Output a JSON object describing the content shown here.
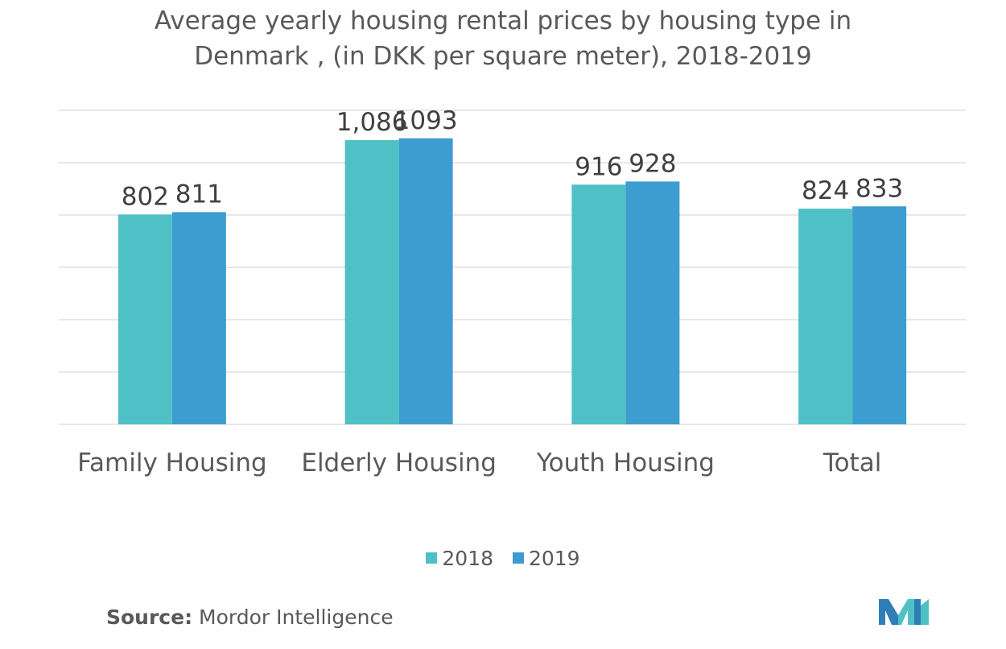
{
  "title_line1": "Average yearly housing rental prices by housing type in",
  "title_line2": "Denmark , (in DKK per square meter), 2018-2019",
  "chart_data": {
    "type": "bar",
    "title": "Average yearly housing rental prices by housing type in Denmark , (in DKK per square meter), 2018-2019",
    "categories": [
      "Family Housing",
      "Elderly Housing",
      "Youth Housing",
      "Total"
    ],
    "series": [
      {
        "name": "2018",
        "values": [
          802,
          1086,
          916,
          824
        ],
        "labels": [
          "802",
          "1,086",
          "916",
          "824"
        ],
        "color": "#4fc1c6"
      },
      {
        "name": "2019",
        "values": [
          811,
          1093,
          928,
          833
        ],
        "labels": [
          "811",
          "1093",
          "928",
          "833"
        ],
        "color": "#3d9cd0"
      }
    ],
    "ylim": [
      0,
      1200
    ],
    "gridlines": true,
    "legend_position": "bottom"
  },
  "source": {
    "label": "Source:",
    "text": " Mordor Intelligence"
  },
  "colors": {
    "gridline": "#d9d9d9",
    "text": "#404040"
  }
}
